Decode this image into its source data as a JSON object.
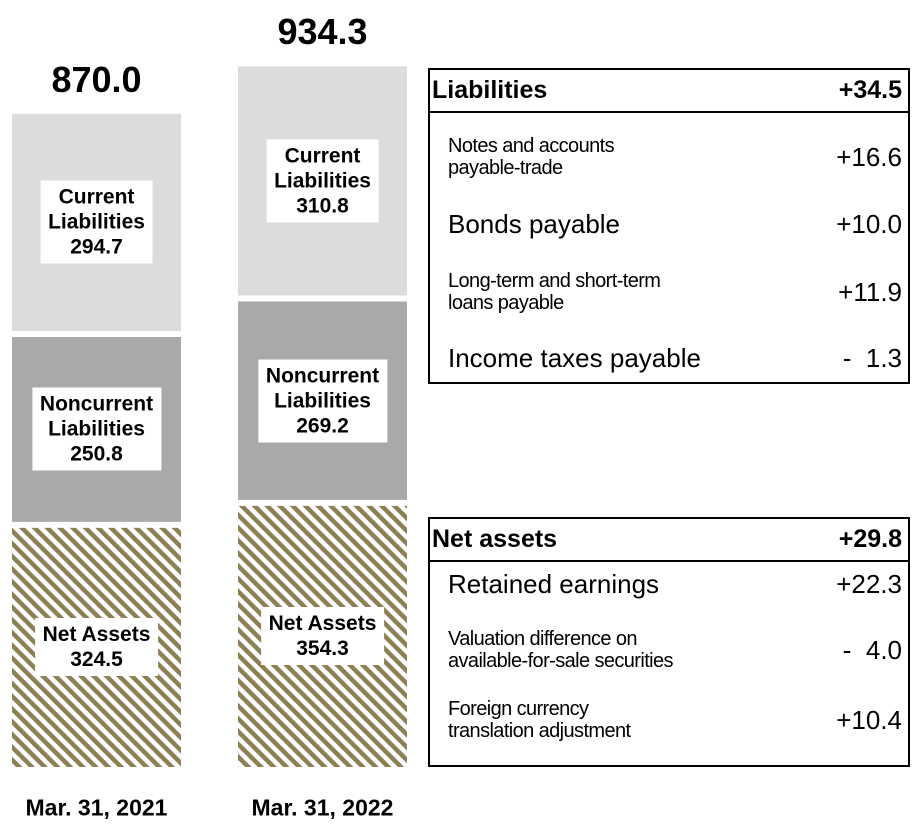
{
  "chart_data": {
    "type": "stacked-bar",
    "categories": [
      "Mar. 31, 2021",
      "Mar. 31, 2022"
    ],
    "series": [
      {
        "name": "Net Assets",
        "color": "#8c8054",
        "values": [
          324.5,
          354.3
        ]
      },
      {
        "name": "Noncurrent\nLiabilities",
        "color": "#a9a9a9",
        "values": [
          250.8,
          269.2
        ]
      },
      {
        "name": "Current\nLiabilities",
        "color": "#dcdcdc",
        "values": [
          294.7,
          310.8
        ]
      }
    ],
    "totals": [
      870,
      934.3
    ],
    "total_labels": [
      "870.0",
      "934.3"
    ]
  },
  "tables": [
    {
      "header": [
        "Liabilities",
        "+34.5"
      ],
      "rows": [
        [
          "Notes and accounts\npayable-trade",
          "+16.6"
        ],
        [
          "Bonds payable",
          "+10.0"
        ],
        [
          "Long-term and short-term\nloans payable",
          "+11.9"
        ],
        [
          "Income taxes payable",
          "-  1.3"
        ]
      ]
    },
    {
      "header": [
        "Net assets",
        "+29.8"
      ],
      "rows": [
        [
          "Retained earnings",
          "+22.3"
        ],
        [
          "Valuation difference on\navailable-for-sale securities",
          "-  4.0"
        ],
        [
          "Foreign currency\ntranslation adjustment",
          "+10.4"
        ]
      ]
    }
  ]
}
